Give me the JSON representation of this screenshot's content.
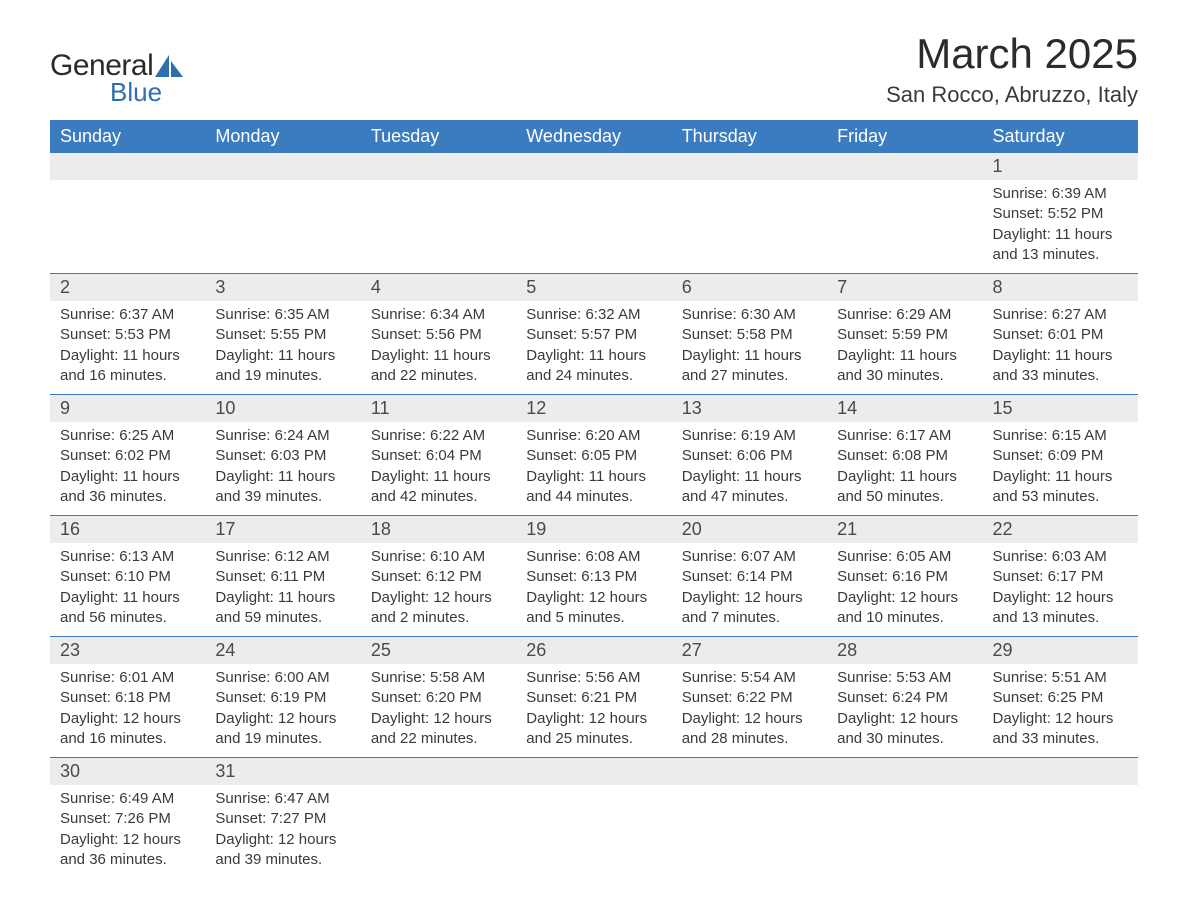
{
  "logo": {
    "general": "General",
    "blue": "Blue",
    "sail_color": "#2f6fb0"
  },
  "header": {
    "month_title": "March 2025",
    "location": "San Rocco, Abruzzo, Italy"
  },
  "colors": {
    "header_row_bg": "#3b7bbf",
    "header_row_text": "#ffffff",
    "daynum_bg": "#ececec",
    "row_divider": "#3b7bbf",
    "body_bg": "#ffffff",
    "text": "#3a3a3a"
  },
  "fonts": {
    "month_title_size": 42,
    "location_size": 22,
    "weekday_size": 18,
    "daynum_size": 18,
    "body_size": 15
  },
  "weekdays": [
    "Sunday",
    "Monday",
    "Tuesday",
    "Wednesday",
    "Thursday",
    "Friday",
    "Saturday"
  ],
  "weeks": [
    [
      null,
      null,
      null,
      null,
      null,
      null,
      {
        "n": "1",
        "sr": "Sunrise: 6:39 AM",
        "ss": "Sunset: 5:52 PM",
        "dl1": "Daylight: 11 hours",
        "dl2": "and 13 minutes."
      }
    ],
    [
      {
        "n": "2",
        "sr": "Sunrise: 6:37 AM",
        "ss": "Sunset: 5:53 PM",
        "dl1": "Daylight: 11 hours",
        "dl2": "and 16 minutes."
      },
      {
        "n": "3",
        "sr": "Sunrise: 6:35 AM",
        "ss": "Sunset: 5:55 PM",
        "dl1": "Daylight: 11 hours",
        "dl2": "and 19 minutes."
      },
      {
        "n": "4",
        "sr": "Sunrise: 6:34 AM",
        "ss": "Sunset: 5:56 PM",
        "dl1": "Daylight: 11 hours",
        "dl2": "and 22 minutes."
      },
      {
        "n": "5",
        "sr": "Sunrise: 6:32 AM",
        "ss": "Sunset: 5:57 PM",
        "dl1": "Daylight: 11 hours",
        "dl2": "and 24 minutes."
      },
      {
        "n": "6",
        "sr": "Sunrise: 6:30 AM",
        "ss": "Sunset: 5:58 PM",
        "dl1": "Daylight: 11 hours",
        "dl2": "and 27 minutes."
      },
      {
        "n": "7",
        "sr": "Sunrise: 6:29 AM",
        "ss": "Sunset: 5:59 PM",
        "dl1": "Daylight: 11 hours",
        "dl2": "and 30 minutes."
      },
      {
        "n": "8",
        "sr": "Sunrise: 6:27 AM",
        "ss": "Sunset: 6:01 PM",
        "dl1": "Daylight: 11 hours",
        "dl2": "and 33 minutes."
      }
    ],
    [
      {
        "n": "9",
        "sr": "Sunrise: 6:25 AM",
        "ss": "Sunset: 6:02 PM",
        "dl1": "Daylight: 11 hours",
        "dl2": "and 36 minutes."
      },
      {
        "n": "10",
        "sr": "Sunrise: 6:24 AM",
        "ss": "Sunset: 6:03 PM",
        "dl1": "Daylight: 11 hours",
        "dl2": "and 39 minutes."
      },
      {
        "n": "11",
        "sr": "Sunrise: 6:22 AM",
        "ss": "Sunset: 6:04 PM",
        "dl1": "Daylight: 11 hours",
        "dl2": "and 42 minutes."
      },
      {
        "n": "12",
        "sr": "Sunrise: 6:20 AM",
        "ss": "Sunset: 6:05 PM",
        "dl1": "Daylight: 11 hours",
        "dl2": "and 44 minutes."
      },
      {
        "n": "13",
        "sr": "Sunrise: 6:19 AM",
        "ss": "Sunset: 6:06 PM",
        "dl1": "Daylight: 11 hours",
        "dl2": "and 47 minutes."
      },
      {
        "n": "14",
        "sr": "Sunrise: 6:17 AM",
        "ss": "Sunset: 6:08 PM",
        "dl1": "Daylight: 11 hours",
        "dl2": "and 50 minutes."
      },
      {
        "n": "15",
        "sr": "Sunrise: 6:15 AM",
        "ss": "Sunset: 6:09 PM",
        "dl1": "Daylight: 11 hours",
        "dl2": "and 53 minutes."
      }
    ],
    [
      {
        "n": "16",
        "sr": "Sunrise: 6:13 AM",
        "ss": "Sunset: 6:10 PM",
        "dl1": "Daylight: 11 hours",
        "dl2": "and 56 minutes."
      },
      {
        "n": "17",
        "sr": "Sunrise: 6:12 AM",
        "ss": "Sunset: 6:11 PM",
        "dl1": "Daylight: 11 hours",
        "dl2": "and 59 minutes."
      },
      {
        "n": "18",
        "sr": "Sunrise: 6:10 AM",
        "ss": "Sunset: 6:12 PM",
        "dl1": "Daylight: 12 hours",
        "dl2": "and 2 minutes."
      },
      {
        "n": "19",
        "sr": "Sunrise: 6:08 AM",
        "ss": "Sunset: 6:13 PM",
        "dl1": "Daylight: 12 hours",
        "dl2": "and 5 minutes."
      },
      {
        "n": "20",
        "sr": "Sunrise: 6:07 AM",
        "ss": "Sunset: 6:14 PM",
        "dl1": "Daylight: 12 hours",
        "dl2": "and 7 minutes."
      },
      {
        "n": "21",
        "sr": "Sunrise: 6:05 AM",
        "ss": "Sunset: 6:16 PM",
        "dl1": "Daylight: 12 hours",
        "dl2": "and 10 minutes."
      },
      {
        "n": "22",
        "sr": "Sunrise: 6:03 AM",
        "ss": "Sunset: 6:17 PM",
        "dl1": "Daylight: 12 hours",
        "dl2": "and 13 minutes."
      }
    ],
    [
      {
        "n": "23",
        "sr": "Sunrise: 6:01 AM",
        "ss": "Sunset: 6:18 PM",
        "dl1": "Daylight: 12 hours",
        "dl2": "and 16 minutes."
      },
      {
        "n": "24",
        "sr": "Sunrise: 6:00 AM",
        "ss": "Sunset: 6:19 PM",
        "dl1": "Daylight: 12 hours",
        "dl2": "and 19 minutes."
      },
      {
        "n": "25",
        "sr": "Sunrise: 5:58 AM",
        "ss": "Sunset: 6:20 PM",
        "dl1": "Daylight: 12 hours",
        "dl2": "and 22 minutes."
      },
      {
        "n": "26",
        "sr": "Sunrise: 5:56 AM",
        "ss": "Sunset: 6:21 PM",
        "dl1": "Daylight: 12 hours",
        "dl2": "and 25 minutes."
      },
      {
        "n": "27",
        "sr": "Sunrise: 5:54 AM",
        "ss": "Sunset: 6:22 PM",
        "dl1": "Daylight: 12 hours",
        "dl2": "and 28 minutes."
      },
      {
        "n": "28",
        "sr": "Sunrise: 5:53 AM",
        "ss": "Sunset: 6:24 PM",
        "dl1": "Daylight: 12 hours",
        "dl2": "and 30 minutes."
      },
      {
        "n": "29",
        "sr": "Sunrise: 5:51 AM",
        "ss": "Sunset: 6:25 PM",
        "dl1": "Daylight: 12 hours",
        "dl2": "and 33 minutes."
      }
    ],
    [
      {
        "n": "30",
        "sr": "Sunrise: 6:49 AM",
        "ss": "Sunset: 7:26 PM",
        "dl1": "Daylight: 12 hours",
        "dl2": "and 36 minutes."
      },
      {
        "n": "31",
        "sr": "Sunrise: 6:47 AM",
        "ss": "Sunset: 7:27 PM",
        "dl1": "Daylight: 12 hours",
        "dl2": "and 39 minutes."
      },
      null,
      null,
      null,
      null,
      null
    ]
  ]
}
